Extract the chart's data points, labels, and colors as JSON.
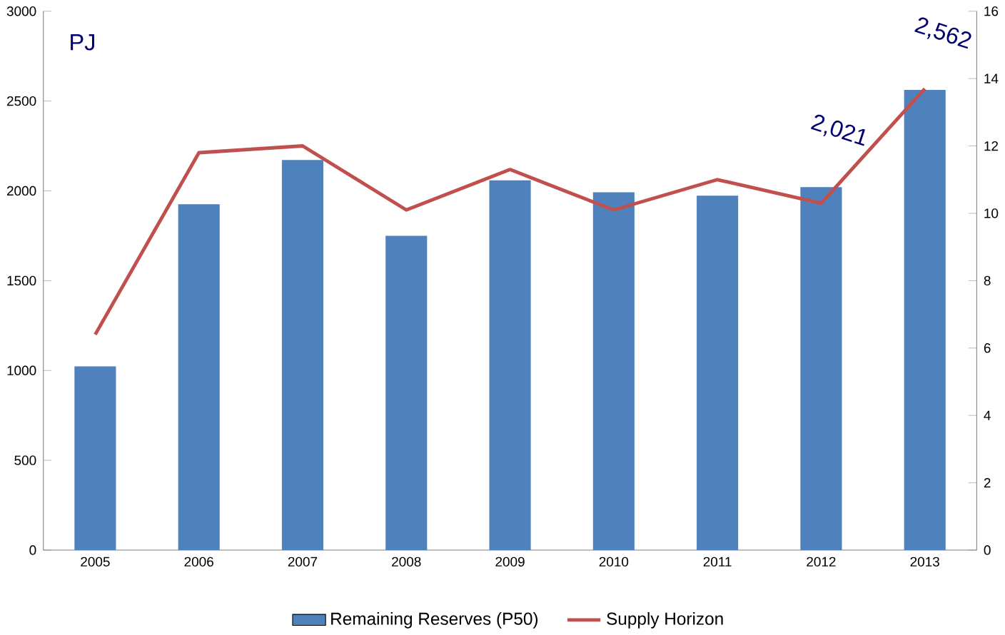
{
  "chart_data": {
    "type": "bar",
    "categories": [
      "2005",
      "2006",
      "2007",
      "2008",
      "2009",
      "2010",
      "2011",
      "2012",
      "2013"
    ],
    "series": [
      {
        "name": "Remaining Reserves (P50)",
        "color": "#4f81bd",
        "values": [
          1023,
          1926,
          2172,
          1750,
          2059,
          1992,
          1973,
          2021,
          2562
        ],
        "value_labels": [
          null,
          null,
          null,
          null,
          null,
          null,
          null,
          "2,021",
          "2,562"
        ]
      },
      {
        "name": "Supply Horizon",
        "type": "line",
        "axis": "y2",
        "color": "#c0504d",
        "values": [
          6.4,
          11.8,
          12.0,
          10.1,
          11.3,
          10.1,
          11.0,
          10.3,
          13.7
        ]
      }
    ],
    "ylim": [
      0,
      3000
    ],
    "yticks": [
      0,
      500,
      1000,
      1500,
      2000,
      2500,
      3000
    ],
    "y2lim": [
      0,
      16
    ],
    "y2ticks": [
      0,
      2,
      4,
      6,
      8,
      10,
      12,
      14,
      16
    ],
    "annotations": [
      "PJ"
    ],
    "legend": "bottom",
    "grid": false,
    "marker": "none"
  }
}
